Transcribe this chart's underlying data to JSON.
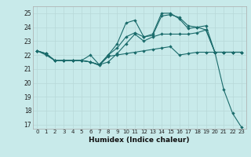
{
  "xlabel": "Humidex (Indice chaleur)",
  "background_color": "#c8eaea",
  "grid_color": "#b8d8d8",
  "line_color": "#1a6b6b",
  "xlim": [
    -0.5,
    23.5
  ],
  "ylim": [
    16.7,
    25.5
  ],
  "yticks": [
    17,
    18,
    19,
    20,
    21,
    22,
    23,
    24,
    25
  ],
  "xticks": [
    0,
    1,
    2,
    3,
    4,
    5,
    6,
    7,
    8,
    9,
    10,
    11,
    12,
    13,
    14,
    15,
    16,
    17,
    18,
    19,
    20,
    21,
    22,
    23
  ],
  "line1_y": [
    22.3,
    22.0,
    21.6,
    21.6,
    21.6,
    21.6,
    21.5,
    21.25,
    21.9,
    22.0,
    22.1,
    22.2,
    22.3,
    22.4,
    22.5,
    22.6,
    22.0,
    22.1,
    22.2,
    22.2,
    22.2,
    22.2,
    22.2,
    22.2
  ],
  "line2_y": [
    22.3,
    22.1,
    21.6,
    21.6,
    21.6,
    21.6,
    21.5,
    21.3,
    22.0,
    22.8,
    24.3,
    24.5,
    23.3,
    23.4,
    24.8,
    24.9,
    24.7,
    24.1,
    24.0,
    23.8,
    22.2,
    19.5,
    17.8,
    16.8
  ],
  "line3_y": [
    22.3,
    22.1,
    21.6,
    21.6,
    21.6,
    21.6,
    21.5,
    21.3,
    22.0,
    22.5,
    23.3,
    23.6,
    23.3,
    23.5,
    25.0,
    25.0,
    24.6,
    23.9,
    24.0,
    24.1,
    22.2,
    22.2,
    22.2,
    22.2
  ],
  "line4_y": [
    22.3,
    22.1,
    21.6,
    21.6,
    21.6,
    21.6,
    22.0,
    21.3,
    21.5,
    22.1,
    22.8,
    23.5,
    23.0,
    23.3,
    23.5,
    23.5,
    23.5,
    23.5,
    23.6,
    23.8,
    22.2,
    22.2,
    22.2,
    22.2
  ]
}
